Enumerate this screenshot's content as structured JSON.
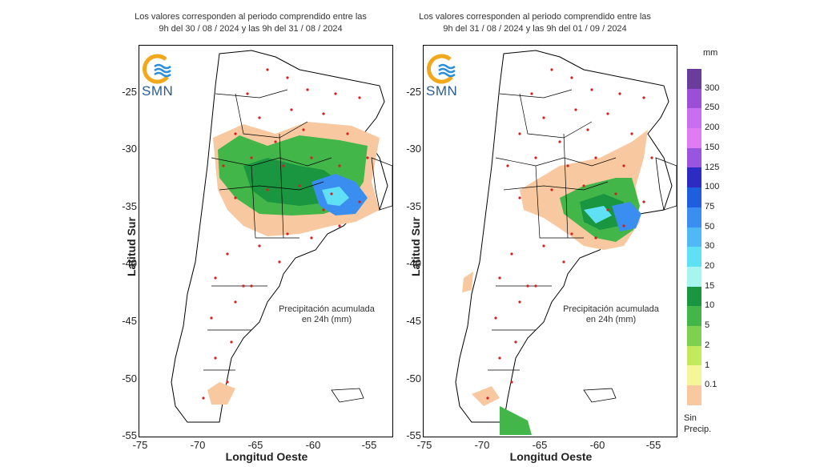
{
  "panels": [
    {
      "title_line1": "Los valores corresponden al periodo comprendido entre las",
      "title_line2": "9h del 30 / 08 / 2024  y las 9h del 31 / 08 / 2024",
      "annotation_line1": "Precipitación acumulada",
      "annotation_line2": "en 24h (mm)",
      "logo_text": "SMN"
    },
    {
      "title_line1": "Los valores corresponden al periodo comprendido entre las",
      "title_line2": "9h del 31 / 08 / 2024  y las 9h del 01 / 09 / 2024",
      "annotation_line1": "Precipitación acumulada",
      "annotation_line2": "en 24h (mm)",
      "logo_text": "SMN"
    }
  ],
  "axes": {
    "xlabel": "Longitud Oeste",
    "ylabel": "Latitud Sur",
    "xticks": [
      "-75",
      "-70",
      "-65",
      "-60",
      "-55"
    ],
    "yticks": [
      "-25",
      "-30",
      "-35",
      "-40",
      "-45",
      "-50",
      "-55"
    ]
  },
  "legend": {
    "unit": "mm",
    "labels": [
      "300",
      "250",
      "200",
      "150",
      "125",
      "100",
      "75",
      "50",
      "30",
      "20",
      "15",
      "10",
      "5",
      "2",
      "1",
      "0.1"
    ],
    "colors": [
      "#6a3d9a",
      "#9b4fd6",
      "#c86ef0",
      "#e07cf2",
      "#9a55e0",
      "#2e2ac4",
      "#1e5fe0",
      "#3a8ef0",
      "#4fb8f5",
      "#5fe0f5",
      "#a8f5f0",
      "#1a9640",
      "#43b649",
      "#7fd04f",
      "#c2ea5c",
      "#f5f59a"
    ],
    "base_label": "0.1",
    "base_color": "#f8c9a0",
    "no_precip_line1": "Sin",
    "no_precip_line2": "Precip."
  },
  "colors": {
    "land_fill": "#ffffff",
    "border": "#000000",
    "station": "#d42020",
    "logo_ring": "#f2a81d",
    "logo_waves": "#2a8fd8"
  }
}
